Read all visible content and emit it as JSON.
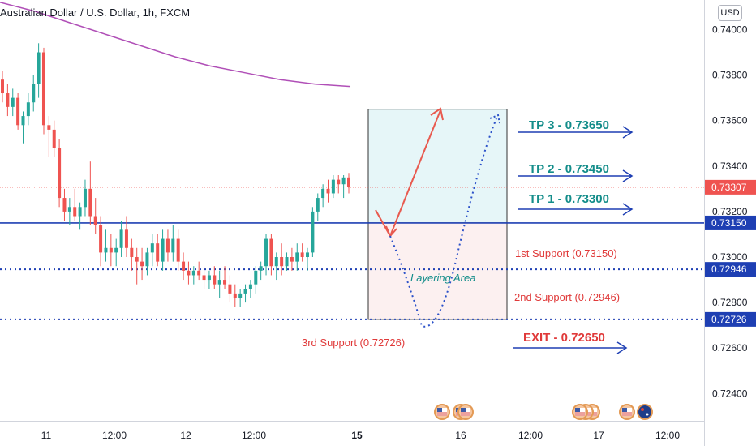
{
  "chart_data": {
    "type": "candlestick",
    "title": "Australian Dollar / U.S. Dollar, 1h, FXCM",
    "currency": "USD",
    "ylim": [
      0.7228,
      0.7413
    ],
    "y_ticks": [
      {
        "value": 0.74,
        "label": "0.74000"
      },
      {
        "value": 0.738,
        "label": "0.73800"
      },
      {
        "value": 0.736,
        "label": "0.73600"
      },
      {
        "value": 0.734,
        "label": "0.73400"
      },
      {
        "value": 0.732,
        "label": "0.73200"
      },
      {
        "value": 0.73,
        "label": "0.73000"
      },
      {
        "value": 0.728,
        "label": "0.72800"
      },
      {
        "value": 0.726,
        "label": "0.72600"
      },
      {
        "value": 0.724,
        "label": "0.72400"
      }
    ],
    "x_ticks": [
      {
        "label": "11",
        "bold": false
      },
      {
        "label": "12:00",
        "bold": false
      },
      {
        "label": "12",
        "bold": false
      },
      {
        "label": "12:00",
        "bold": false
      },
      {
        "label": "15",
        "bold": true
      },
      {
        "label": "16",
        "bold": false
      },
      {
        "label": "12:00",
        "bold": false
      },
      {
        "label": "17",
        "bold": false
      },
      {
        "label": "12:00",
        "bold": false
      }
    ],
    "candles": [
      [
        0.7378,
        0.7382,
        0.7368,
        0.7372
      ],
      [
        0.7372,
        0.7376,
        0.7362,
        0.7366
      ],
      [
        0.7366,
        0.7374,
        0.7362,
        0.737
      ],
      [
        0.737,
        0.7372,
        0.7356,
        0.7358
      ],
      [
        0.7358,
        0.7364,
        0.735,
        0.7362
      ],
      [
        0.7362,
        0.7372,
        0.7358,
        0.7368
      ],
      [
        0.7368,
        0.738,
        0.7364,
        0.7376
      ],
      [
        0.7376,
        0.7394,
        0.737,
        0.739
      ],
      [
        0.739,
        0.7392,
        0.7354,
        0.7358
      ],
      [
        0.7358,
        0.7362,
        0.7344,
        0.7356
      ],
      [
        0.7356,
        0.736,
        0.7344,
        0.7348
      ],
      [
        0.7348,
        0.7352,
        0.7322,
        0.7326
      ],
      [
        0.7326,
        0.733,
        0.7316,
        0.732
      ],
      [
        0.732,
        0.7326,
        0.7314,
        0.7322
      ],
      [
        0.7322,
        0.733,
        0.7316,
        0.7318
      ],
      [
        0.7318,
        0.7324,
        0.7312,
        0.7322
      ],
      [
        0.7322,
        0.7334,
        0.7318,
        0.733
      ],
      [
        0.733,
        0.7342,
        0.7314,
        0.7318
      ],
      [
        0.7318,
        0.7326,
        0.731,
        0.7314
      ],
      [
        0.7314,
        0.7318,
        0.7296,
        0.7302
      ],
      [
        0.7302,
        0.7312,
        0.7298,
        0.7304
      ],
      [
        0.7304,
        0.731,
        0.7296,
        0.7302
      ],
      [
        0.7302,
        0.7308,
        0.7296,
        0.7304
      ],
      [
        0.7304,
        0.7316,
        0.73,
        0.7312
      ],
      [
        0.7312,
        0.7318,
        0.73,
        0.7304
      ],
      [
        0.7304,
        0.7308,
        0.7294,
        0.73
      ],
      [
        0.73,
        0.7304,
        0.7288,
        0.7298
      ],
      [
        0.7298,
        0.7304,
        0.729,
        0.7296
      ],
      [
        0.7296,
        0.7304,
        0.7292,
        0.7302
      ],
      [
        0.7302,
        0.731,
        0.7296,
        0.7306
      ],
      [
        0.7306,
        0.731,
        0.7296,
        0.7298
      ],
      [
        0.7298,
        0.7312,
        0.7294,
        0.7308
      ],
      [
        0.7308,
        0.7312,
        0.7298,
        0.7302
      ],
      [
        0.7302,
        0.7314,
        0.7298,
        0.7308
      ],
      [
        0.7308,
        0.7312,
        0.7294,
        0.7298
      ],
      [
        0.7298,
        0.7302,
        0.729,
        0.7294
      ],
      [
        0.7294,
        0.7298,
        0.7288,
        0.7292
      ],
      [
        0.7292,
        0.7296,
        0.7288,
        0.7294
      ],
      [
        0.7294,
        0.7298,
        0.729,
        0.7292
      ],
      [
        0.7292,
        0.7296,
        0.7286,
        0.729
      ],
      [
        0.729,
        0.7294,
        0.7286,
        0.7292
      ],
      [
        0.7292,
        0.7296,
        0.7286,
        0.7288
      ],
      [
        0.7288,
        0.7294,
        0.7282,
        0.729
      ],
      [
        0.729,
        0.7296,
        0.7286,
        0.7288
      ],
      [
        0.7288,
        0.7292,
        0.728,
        0.7284
      ],
      [
        0.7284,
        0.7288,
        0.7278,
        0.7282
      ],
      [
        0.7282,
        0.7286,
        0.7278,
        0.7284
      ],
      [
        0.7284,
        0.7288,
        0.728,
        0.7286
      ],
      [
        0.7286,
        0.729,
        0.7282,
        0.7288
      ],
      [
        0.7288,
        0.7296,
        0.7284,
        0.7294
      ],
      [
        0.7294,
        0.7298,
        0.729,
        0.7296
      ],
      [
        0.7296,
        0.731,
        0.7292,
        0.7308
      ],
      [
        0.7308,
        0.731,
        0.7292,
        0.7296
      ],
      [
        0.7296,
        0.7302,
        0.729,
        0.73
      ],
      [
        0.73,
        0.7306,
        0.7292,
        0.7296
      ],
      [
        0.7296,
        0.7302,
        0.7294,
        0.73
      ],
      [
        0.73,
        0.7304,
        0.7294,
        0.7298
      ],
      [
        0.7298,
        0.7306,
        0.7294,
        0.7302
      ],
      [
        0.7302,
        0.7306,
        0.7298,
        0.73
      ],
      [
        0.73,
        0.7304,
        0.7294,
        0.7302
      ],
      [
        0.7302,
        0.7322,
        0.73,
        0.732
      ],
      [
        0.732,
        0.7328,
        0.7316,
        0.7326
      ],
      [
        0.7326,
        0.7332,
        0.7322,
        0.733
      ],
      [
        0.733,
        0.7334,
        0.7324,
        0.7328
      ],
      [
        0.7328,
        0.7336,
        0.7326,
        0.7334
      ],
      [
        0.7334,
        0.7336,
        0.7328,
        0.7332
      ],
      [
        0.7332,
        0.7336,
        0.7326,
        0.7335
      ],
      [
        0.7335,
        0.7337,
        0.7328,
        0.7331
      ]
    ],
    "moving_average": [
      0.7412,
      0.7408,
      0.7403,
      0.7398,
      0.7393,
      0.7388,
      0.7384,
      0.7381,
      0.7378,
      0.7376,
      0.7375
    ],
    "horizontal_levels": [
      {
        "name": "1st Support",
        "value": 0.7315,
        "tag": "0.73150",
        "style": "solid"
      },
      {
        "name": "2nd Support",
        "value": 0.72946,
        "tag": "0.72946",
        "style": "dotted"
      },
      {
        "name": "3rd Support",
        "value": 0.72726,
        "tag": "0.72726",
        "style": "dotted"
      }
    ],
    "last_price": {
      "value": 0.73307,
      "tag": "0.73307"
    },
    "zones": [
      {
        "name": "target",
        "from": 0.7315,
        "to": 0.7365
      },
      {
        "name": "layering",
        "from": 0.72726,
        "to": 0.7315
      }
    ]
  },
  "annotations": {
    "tp3": "TP 3 - 0.73650",
    "tp2": "TP 2 - 0.73450",
    "tp1": "TP 1 - 0.73300",
    "support1": "1st Support (0.73150)",
    "support2": "2nd Support (0.72946)",
    "support3": "3rd Support (0.72726)",
    "exit": "EXIT - 0.72650",
    "layering": "Layering Area"
  },
  "colors": {
    "bull": "#26a69a",
    "bear": "#ef5350",
    "ma": "#b04fb7",
    "level": "#1e3fb3",
    "tp": "#138d8a",
    "sup": "#e03a3a",
    "price_tag": "#ef5350"
  }
}
